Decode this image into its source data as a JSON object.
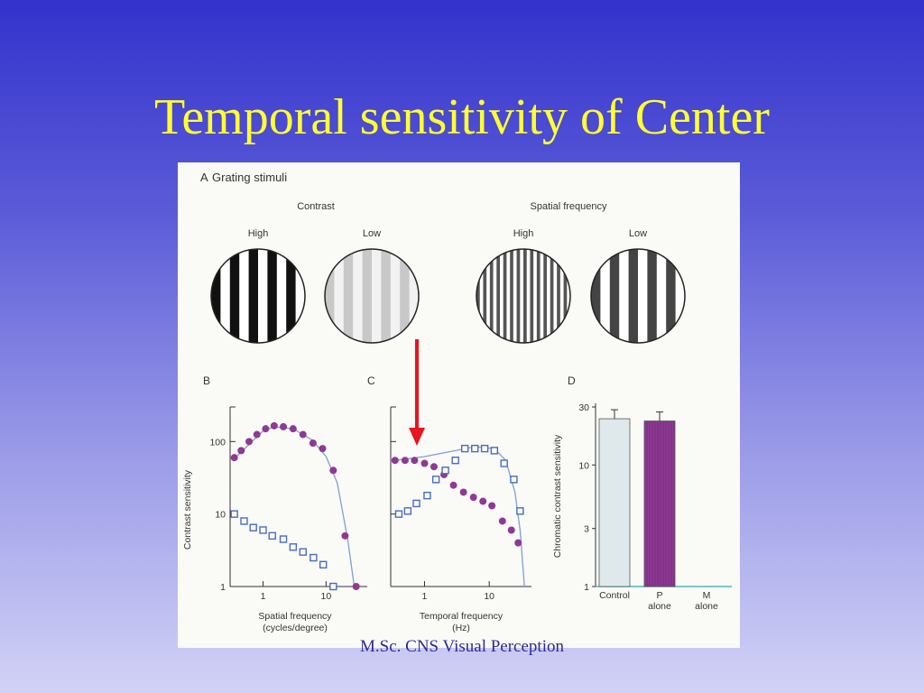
{
  "slide": {
    "title": "Temporal sensitivity of Center",
    "footer": "M.Sc. CNS Visual Perception"
  },
  "colors": {
    "background_top": "#3333cc",
    "background_bottom": "#d2d2f6",
    "title": "#ffff33",
    "arrow": "#e8141e",
    "purple": "#8e3a94",
    "blue": "#4a6bc0",
    "curve": "#7f9fd3"
  },
  "panel_a": {
    "label": "A",
    "title": "Grating stimuli",
    "group_contrast": "Contrast",
    "group_spatial": "Spatial frequency",
    "gratings": [
      {
        "label": "High",
        "bars": 10,
        "dark": "#111111",
        "light": "#ffffff"
      },
      {
        "label": "Low",
        "bars": 10,
        "dark": "#c8c8c8",
        "light": "#f2f2f2"
      },
      {
        "label": "High",
        "bars": 28,
        "dark": "#555555",
        "light": "#ffffff"
      },
      {
        "label": "Low",
        "bars": 10,
        "dark": "#444444",
        "light": "#ffffff"
      }
    ]
  },
  "chart_data": [
    {
      "panel": "B",
      "type": "scatter",
      "ylabel": "Contrast sensitivity",
      "xlabel_line1": "Spatial frequency",
      "xlabel_line2": "(cycles/degree)",
      "x_scale": "log",
      "y_scale": "log",
      "xlim": [
        0.3,
        45
      ],
      "ylim": [
        1,
        300
      ],
      "x_ticks": [
        1,
        10
      ],
      "y_ticks": [
        1,
        10,
        100
      ],
      "series": [
        {
          "marker": "filled-circle",
          "color": "#8e3a94",
          "points": [
            [
              0.35,
              60
            ],
            [
              0.45,
              75
            ],
            [
              0.6,
              100
            ],
            [
              0.8,
              125
            ],
            [
              1.1,
              150
            ],
            [
              1.5,
              165
            ],
            [
              2.1,
              160
            ],
            [
              3,
              150
            ],
            [
              4.3,
              125
            ],
            [
              6.2,
              95
            ],
            [
              8.8,
              80
            ],
            [
              13,
              40
            ],
            [
              20,
              5
            ],
            [
              30,
              1
            ]
          ]
        },
        {
          "marker": "open-square",
          "color": "#4a6bc0",
          "points": [
            [
              0.35,
              10
            ],
            [
              0.5,
              8
            ],
            [
              0.7,
              6.5
            ],
            [
              1,
              6
            ],
            [
              1.4,
              5
            ],
            [
              2.1,
              4.5
            ],
            [
              3,
              3.5
            ],
            [
              4.3,
              3
            ],
            [
              6.3,
              2.5
            ],
            [
              9,
              2
            ],
            [
              13,
              1
            ]
          ]
        }
      ],
      "curve": [
        [
          0.35,
          58
        ],
        [
          1,
          140
        ],
        [
          1.5,
          160
        ],
        [
          3,
          150
        ],
        [
          6,
          105
        ],
        [
          10,
          62
        ],
        [
          15,
          27
        ],
        [
          22,
          4.5
        ],
        [
          28,
          1
        ]
      ]
    },
    {
      "panel": "C",
      "type": "scatter",
      "xlabel_line1": "Temporal frequency",
      "xlabel_line2": "(Hz)",
      "x_scale": "log",
      "y_scale": "log",
      "xlim": [
        0.3,
        45
      ],
      "ylim": [
        1,
        300
      ],
      "x_ticks": [
        1,
        10
      ],
      "annotation": "red arrow pointing down at the lowest temporal frequencies",
      "series": [
        {
          "marker": "filled-circle",
          "color": "#8e3a94",
          "points": [
            [
              0.35,
              55
            ],
            [
              0.5,
              55
            ],
            [
              0.7,
              55
            ],
            [
              1,
              50
            ],
            [
              1.4,
              45
            ],
            [
              2,
              35
            ],
            [
              2.8,
              25
            ],
            [
              4,
              20
            ],
            [
              5.7,
              17
            ],
            [
              8,
              15
            ],
            [
              11,
              13
            ],
            [
              16,
              8
            ],
            [
              22,
              6
            ],
            [
              28,
              4
            ]
          ]
        },
        {
          "marker": "open-square",
          "color": "#4a6bc0",
          "points": [
            [
              0.4,
              10
            ],
            [
              0.55,
              11
            ],
            [
              0.75,
              14
            ],
            [
              1.1,
              18
            ],
            [
              1.5,
              30
            ],
            [
              2.1,
              40
            ],
            [
              3,
              55
            ],
            [
              4.2,
              80
            ],
            [
              6,
              80
            ],
            [
              8.5,
              80
            ],
            [
              12,
              75
            ],
            [
              17,
              50
            ],
            [
              24,
              30
            ],
            [
              30,
              11
            ]
          ]
        }
      ],
      "curve": [
        [
          0.35,
          55
        ],
        [
          1,
          62
        ],
        [
          3,
          75
        ],
        [
          6,
          85
        ],
        [
          12,
          80
        ],
        [
          18,
          55
        ],
        [
          25,
          20
        ],
        [
          30,
          6
        ],
        [
          35,
          1
        ]
      ]
    },
    {
      "panel": "D",
      "type": "bar",
      "ylabel": "Chromatic contrast sensitivity",
      "y_scale": "log",
      "ylim": [
        1,
        30
      ],
      "y_ticks": [
        1,
        3,
        10,
        30
      ],
      "categories": [
        "Control",
        "P\nalone",
        "M\nalone"
      ],
      "values": [
        24,
        23,
        1
      ],
      "bar_colors": [
        "#dfe8ea",
        "#8e3a94",
        "#4fb7b9"
      ],
      "baseline_color": "#4fb7b9"
    }
  ]
}
